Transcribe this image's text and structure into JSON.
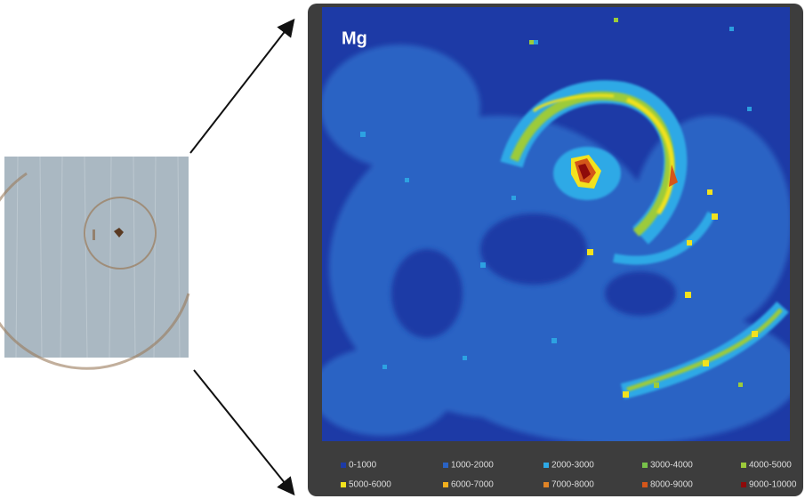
{
  "map": {
    "label": "Mg",
    "legend": [
      {
        "label": "0-1000",
        "color": "#1d3aa6"
      },
      {
        "label": "1000-2000",
        "color": "#2a63c4"
      },
      {
        "label": "2000-3000",
        "color": "#2ea9e6"
      },
      {
        "label": "3000-4000",
        "color": "#78c24a"
      },
      {
        "label": "4000-5000",
        "color": "#9ccb3a"
      },
      {
        "label": "5000-6000",
        "color": "#f2e21e"
      },
      {
        "label": "6000-7000",
        "color": "#f2b01e"
      },
      {
        "label": "7000-8000",
        "color": "#e08426"
      },
      {
        "label": "8000-9000",
        "color": "#d4561a"
      },
      {
        "label": "9000-10000",
        "color": "#8e0a0a"
      }
    ]
  }
}
